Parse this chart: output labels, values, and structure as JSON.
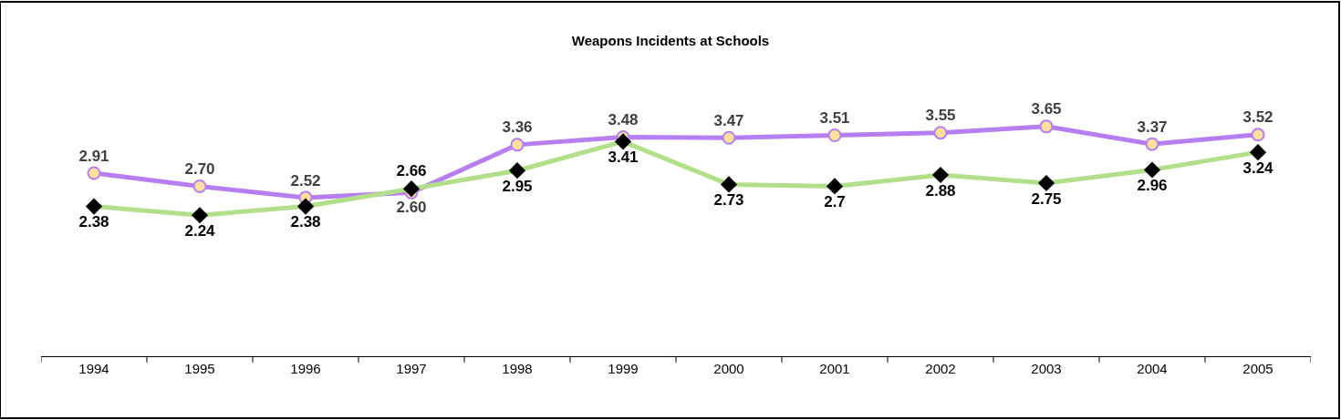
{
  "chart_data": {
    "type": "line",
    "title": "Weapons Incidents at Schools",
    "categories": [
      "1994",
      "1995",
      "1996",
      "1997",
      "1998",
      "1999",
      "2000",
      "2001",
      "2002",
      "2003",
      "2004",
      "2005"
    ],
    "series": [
      {
        "color": "#b57ff2",
        "marker": "circle",
        "values": [
          2.91,
          2.7,
          2.52,
          2.6,
          3.36,
          3.48,
          3.47,
          3.51,
          3.55,
          3.65,
          3.37,
          3.52
        ],
        "value_labels": [
          "2.91",
          "2.70",
          "2.52",
          "2.60",
          "3.36",
          "3.48",
          "3.47",
          "3.51",
          "3.55",
          "3.65",
          "3.37",
          "3.52"
        ]
      },
      {
        "color": "#b3de8a",
        "marker": "diamond",
        "values": [
          2.38,
          2.24,
          2.38,
          2.66,
          2.95,
          3.41,
          2.73,
          2.7,
          2.88,
          2.75,
          2.96,
          3.24
        ],
        "value_labels": [
          "2.38",
          "2.24",
          "2.38",
          "2.66",
          "2.95",
          "3.41",
          "2.73",
          "2.7",
          "2.88",
          "2.75",
          "2.96",
          "3.24"
        ]
      }
    ],
    "tick_labels": "x"
  }
}
